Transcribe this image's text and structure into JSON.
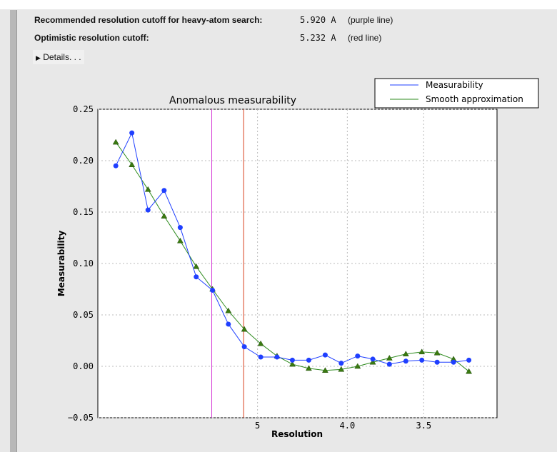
{
  "summary": {
    "recommended_label": "Recommended resolution cutoff for heavy-atom search:",
    "recommended_value": "5.920 A",
    "recommended_note": "(purple line)",
    "optimistic_label": "Optimistic resolution cutoff:",
    "optimistic_value": "5.232 A",
    "optimistic_note": "(red line)",
    "details_label": "Details. . ."
  },
  "chart_data": {
    "type": "line",
    "title": "Anomalous measurability",
    "xlabel": "Resolution",
    "ylabel": "Measurability",
    "x_scale": "1/d^2 (reciprocal squared)",
    "xticks": [
      {
        "value": 5,
        "label": "5"
      },
      {
        "value": 4.0,
        "label": "4.0"
      },
      {
        "value": 3.5,
        "label": "3.5"
      }
    ],
    "yticks": [
      "0.25",
      "0.20",
      "0.15",
      "0.10",
      "0.05",
      "0.00",
      "−0.05"
    ],
    "ylim": [
      -0.05,
      0.25
    ],
    "grid": true,
    "legend_position": "top-right, above plot",
    "x": [
      14.9,
      10.83,
      8.92,
      7.76,
      6.96,
      6.37,
      5.9,
      5.53,
      5.22,
      4.95,
      4.72,
      4.53,
      4.35,
      4.19,
      4.05,
      3.92,
      3.81,
      3.7,
      3.6,
      3.51,
      3.43,
      3.35,
      3.28
    ],
    "series": [
      {
        "name": "Measurability",
        "color": "#1f3fff",
        "marker": "circle",
        "values": [
          0.195,
          0.227,
          0.152,
          0.171,
          0.135,
          0.087,
          0.074,
          0.041,
          0.019,
          0.009,
          0.009,
          0.006,
          0.006,
          0.011,
          0.003,
          0.01,
          0.007,
          0.002,
          0.005,
          0.006,
          0.004,
          0.004,
          0.006
        ]
      },
      {
        "name": "Smooth approximation",
        "color": "#2e8b1e",
        "marker": "triangle",
        "values": [
          0.218,
          0.196,
          0.172,
          0.146,
          0.122,
          0.097,
          0.075,
          0.054,
          0.036,
          0.022,
          0.01,
          0.002,
          -0.002,
          -0.004,
          -0.003,
          0.0,
          0.004,
          0.008,
          0.012,
          0.014,
          0.013,
          0.007,
          -0.005
        ]
      }
    ],
    "vlines": [
      {
        "value": 5.92,
        "color": "#d63bd6"
      },
      {
        "value": 5.232,
        "color": "#d8401e"
      }
    ]
  }
}
